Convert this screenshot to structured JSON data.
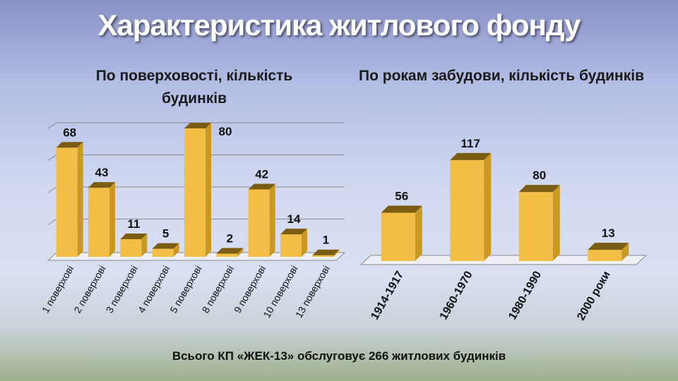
{
  "page": {
    "title": "Характеристика житлового фонду",
    "footer": "Всього КП «ЖЕК-13» обслуговує 266 житлових будинків"
  },
  "colors": {
    "bar_front": "#f2be45",
    "bar_side": "#c89a25",
    "bar_top": "#7a5c12",
    "grid": "#8a8a8a"
  },
  "chart_data": [
    {
      "type": "bar",
      "title": "По поверховості, кількість будинків",
      "categories": [
        "1 поверхові",
        "2 поверхові",
        "3 поверхові",
        "4 поверхові",
        "5 поверхові",
        "8 поверхові",
        "9 поверхові",
        "10 поверхові",
        "13 поверхові"
      ],
      "values": [
        68,
        43,
        11,
        5,
        80,
        2,
        42,
        14,
        1
      ],
      "ylim": [
        0,
        80
      ],
      "grid": true,
      "legend": "none"
    },
    {
      "type": "bar",
      "title": "По рокам забудови, кількість будинків",
      "categories": [
        "1914-1917",
        "1960-1970",
        "1980-1990",
        "2000 роки"
      ],
      "values": [
        56,
        117,
        80,
        13
      ],
      "ylim": [
        0,
        130
      ],
      "grid": false,
      "legend": "none"
    }
  ]
}
